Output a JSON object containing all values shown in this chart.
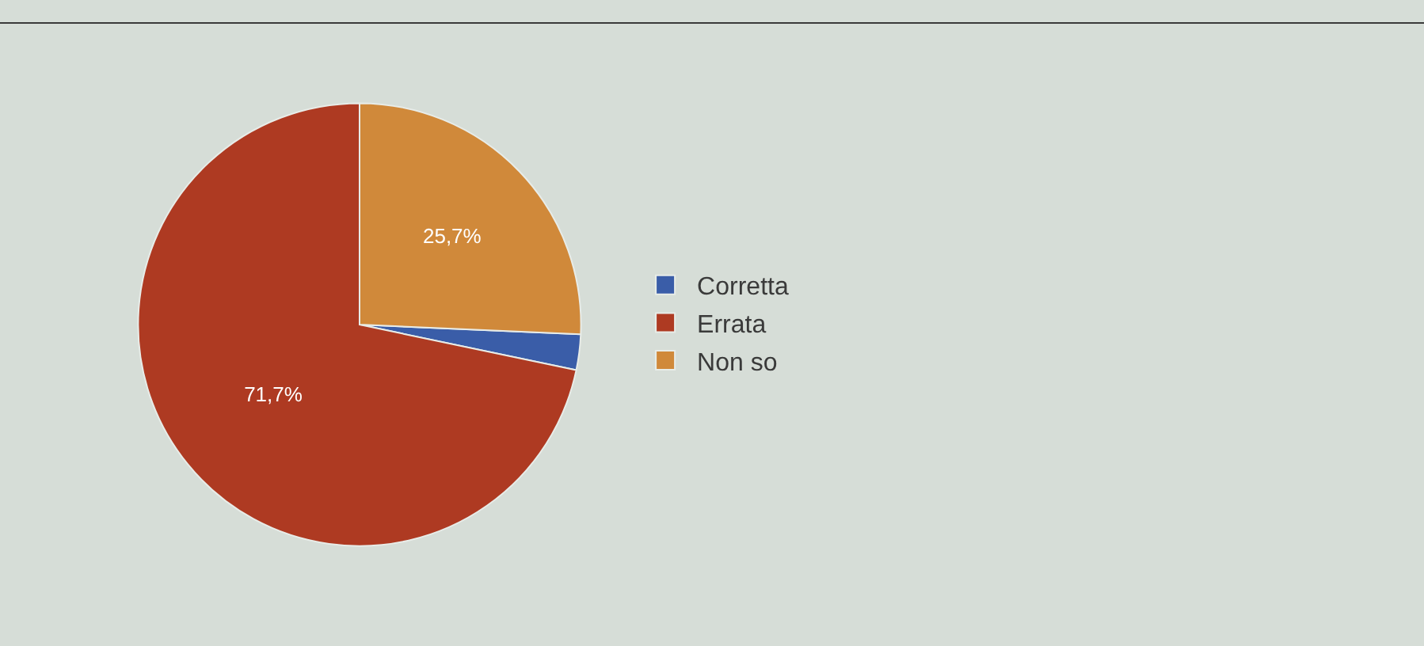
{
  "chart_data": {
    "type": "pie",
    "categories": [
      "Corretta",
      "Errata",
      "Non so"
    ],
    "values": [
      2.6,
      71.7,
      25.7
    ],
    "colors": [
      "#3a5da8",
      "#ae3a22",
      "#d0893a"
    ],
    "value_labels": [
      null,
      "71,7%",
      "25,7%"
    ],
    "legend": "right"
  }
}
